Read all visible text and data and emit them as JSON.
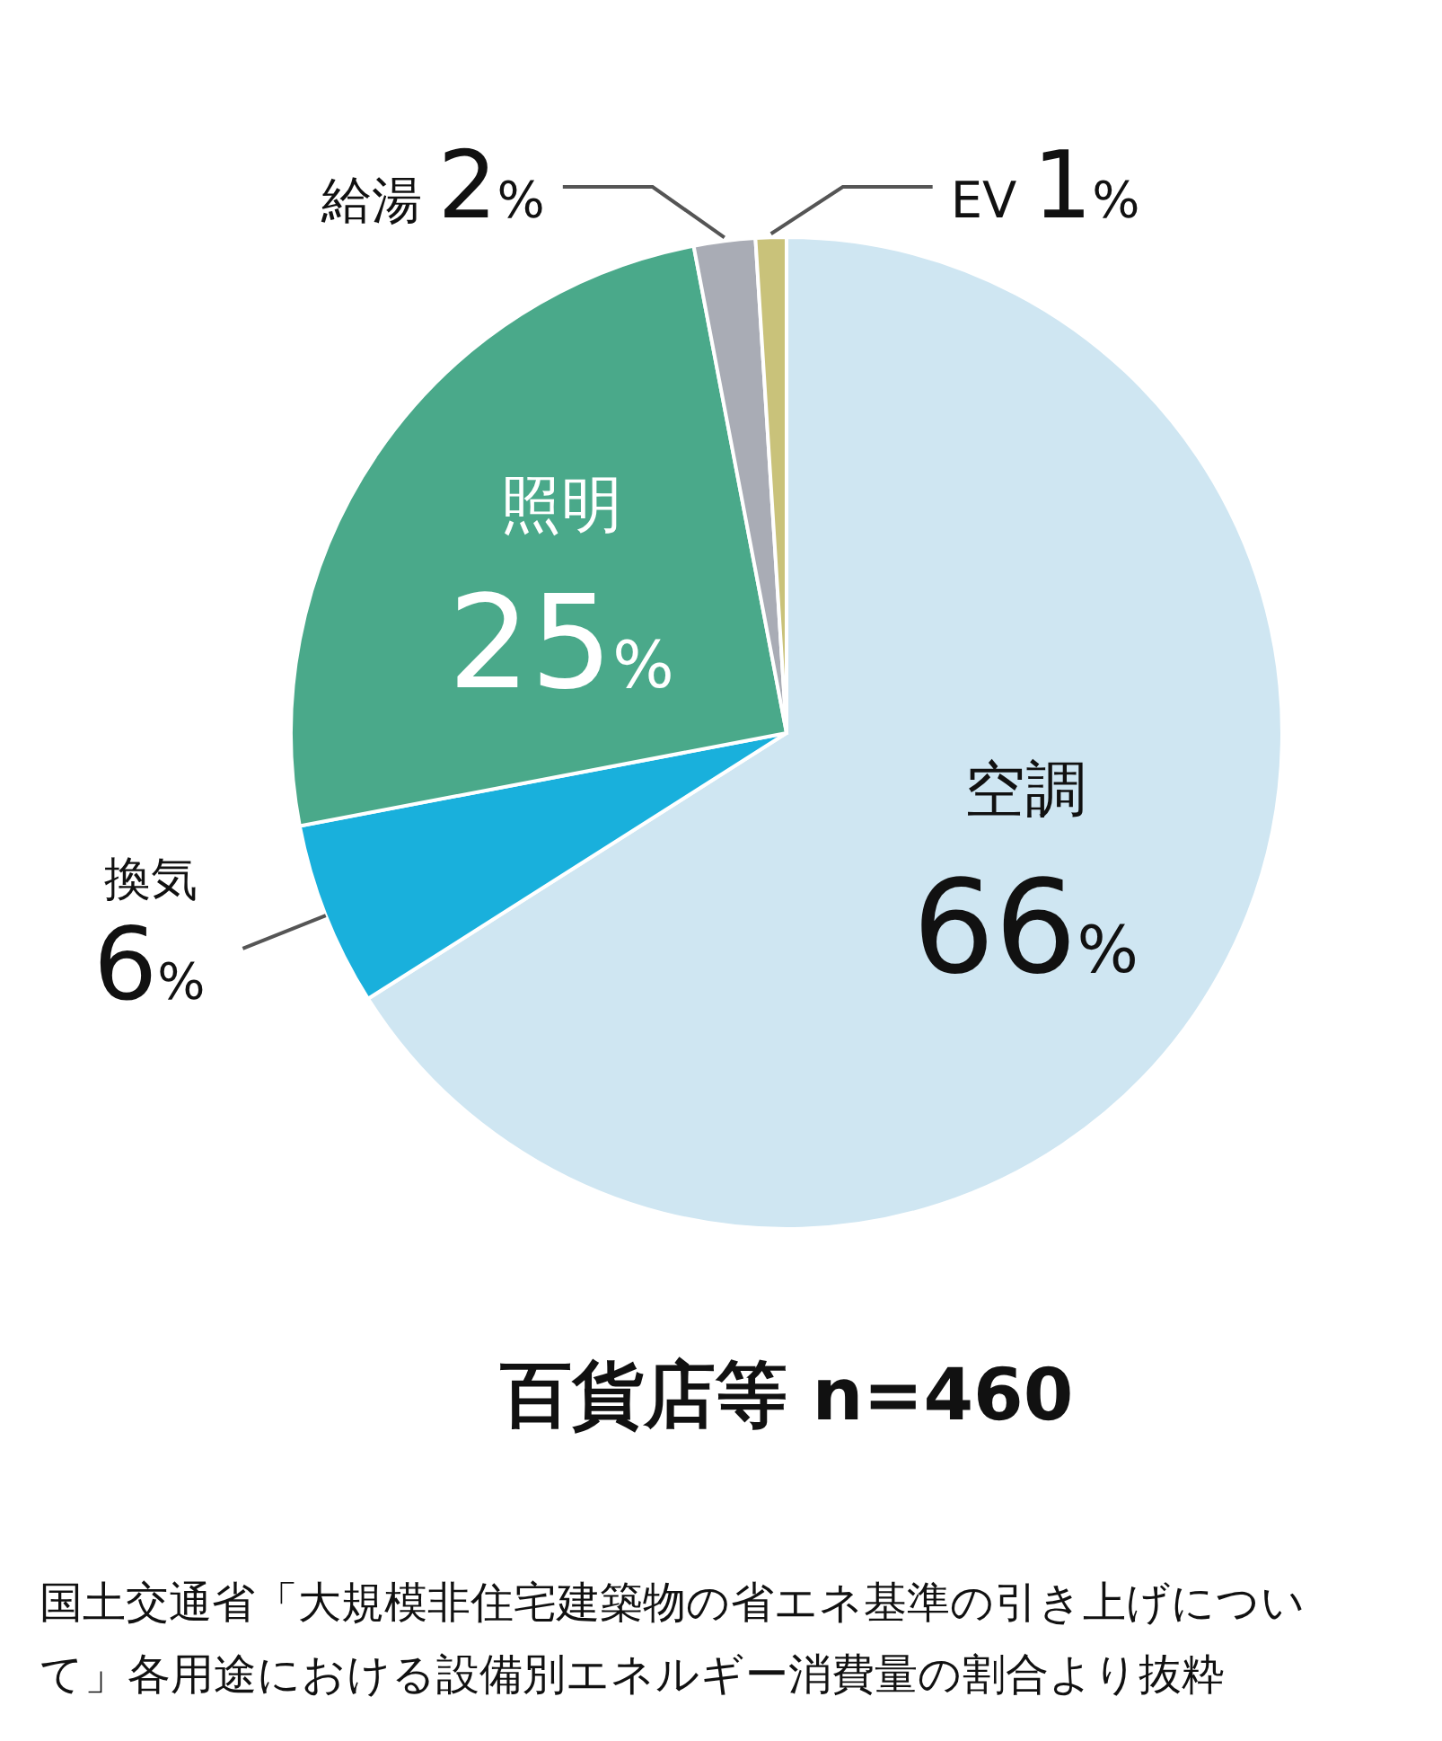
{
  "chart_data": {
    "type": "pie",
    "title": "百貨店等 n=460",
    "categories": [
      "空調",
      "換気",
      "照明",
      "給湯",
      "EV"
    ],
    "values": [
      66,
      6,
      25,
      2,
      1
    ],
    "value_labels": [
      "66%",
      "6%",
      "25%",
      "2%",
      "1%"
    ],
    "colors": [
      "#cfe6f2",
      "#19b0dc",
      "#4aa98a",
      "#a9acb5",
      "#c9c27a"
    ],
    "annotations": [
      "国土交通省「大規模非住宅建築物の省エネ基準の引き上げについて」各用途における設備別エネルギー消費量の割合より抜粋"
    ]
  }
}
